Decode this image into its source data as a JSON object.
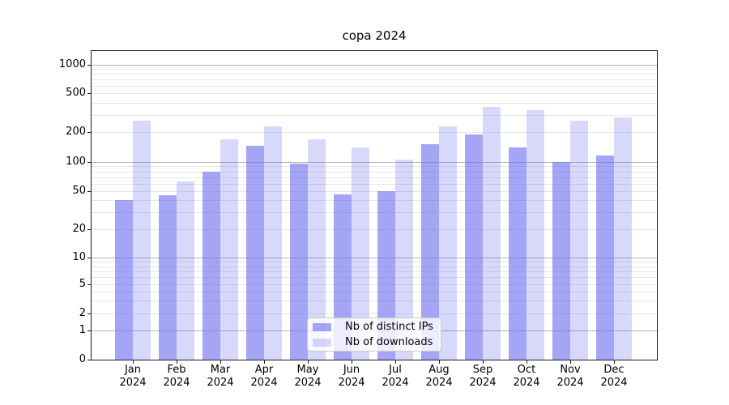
{
  "chart_data": {
    "type": "bar",
    "title": "copa 2024",
    "xlabel": "",
    "ylabel": "",
    "categories": [
      "Jan 2024",
      "Feb 2024",
      "Mar 2024",
      "Apr 2024",
      "May 2024",
      "Jun 2024",
      "Jul 2024",
      "Aug 2024",
      "Sep 2024",
      "Oct 2024",
      "Nov 2024",
      "Dec 2024"
    ],
    "series": [
      {
        "name": "Nb of distinct IPs",
        "color": "rgba(105,105,240,0.60)",
        "values": [
          40,
          45,
          80,
          145,
          97,
          46,
          50,
          150,
          190,
          140,
          100,
          117
        ]
      },
      {
        "name": "Nb of downloads",
        "color": "rgba(105,105,240,0.26)",
        "values": [
          260,
          63,
          170,
          230,
          170,
          140,
          105,
          230,
          360,
          335,
          260,
          280
        ]
      }
    ],
    "yscale": "log-with-zero-baseline",
    "ylim": [
      0,
      1380
    ],
    "y_tick_labels": [
      "1000",
      "500",
      "200",
      "100",
      "50",
      "20",
      "10",
      "5",
      "2",
      "1",
      "0"
    ],
    "y_tick_values": [
      1000,
      500,
      200,
      100,
      50,
      20,
      10,
      5,
      2,
      1,
      0
    ],
    "grid": true,
    "grid_major_values": [
      1,
      10,
      100,
      1000
    ],
    "grid_minor_values": [
      2,
      3,
      4,
      5,
      6,
      7,
      8,
      9,
      20,
      30,
      40,
      50,
      60,
      70,
      80,
      90,
      200,
      300,
      400,
      500,
      600,
      700,
      800,
      900
    ],
    "legend_position": "lower center (inside plot)"
  },
  "colors": {
    "bar_distinct_ips": "rgba(105,105,240,0.60)",
    "bar_downloads": "rgba(105,105,240,0.26)",
    "grid_major": "#b3b3b3",
    "grid_minor": "#e6e6e6",
    "axis_spine": "#1a1a1a",
    "background": "#ffffff"
  }
}
